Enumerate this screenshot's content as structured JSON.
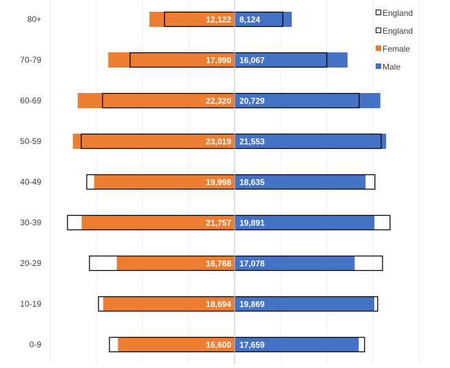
{
  "chart_data": {
    "type": "bar",
    "orientation": "horizontal",
    "subtype": "population-pyramid",
    "title": "",
    "xlabel": "",
    "ylabel": "",
    "grid": true,
    "legend_position": "top-right",
    "categories": [
      "80+",
      "70-79",
      "60-69",
      "50-59",
      "40-49",
      "30-39",
      "20-29",
      "10-19",
      "0-9"
    ],
    "series": [
      {
        "name": "Female",
        "side": "left",
        "style": "filled",
        "color": "#ED7D31",
        "values": [
          12122,
          17990,
          22320,
          23019,
          19998,
          21757,
          16768,
          18694,
          16600
        ],
        "labels": [
          "12,122",
          "17,990",
          "22,320",
          "23,019",
          "19,998",
          "21,757",
          "16,768",
          "18,694",
          "16,600"
        ]
      },
      {
        "name": "Male",
        "side": "right",
        "style": "filled",
        "color": "#4472C4",
        "values": [
          8124,
          16067,
          20729,
          21553,
          18635,
          19891,
          17078,
          19869,
          17659
        ],
        "labels": [
          "8,124",
          "16,067",
          "20,729",
          "21,553",
          "18,635",
          "19,891",
          "17,078",
          "19,869",
          "17,659"
        ]
      },
      {
        "name": "England",
        "side": "left",
        "style": "outline",
        "color": "#000000",
        "values": [
          9980,
          14870,
          18790,
          21820,
          21040,
          23780,
          20650,
          19370,
          17810
        ]
      },
      {
        "name": "England",
        "side": "right",
        "style": "outline",
        "color": "#000000",
        "values": [
          6850,
          13110,
          17710,
          20840,
          19960,
          22110,
          21040,
          20350,
          18490
        ]
      }
    ],
    "legend": [
      {
        "label": "England",
        "marker": "outline"
      },
      {
        "label": "England",
        "marker": "outline"
      },
      {
        "label": "Female",
        "marker": "#ED7D31"
      },
      {
        "label": "Male",
        "marker": "#4472C4"
      }
    ],
    "x_range": [
      -26250,
      26250
    ],
    "grid_step": 6560
  }
}
